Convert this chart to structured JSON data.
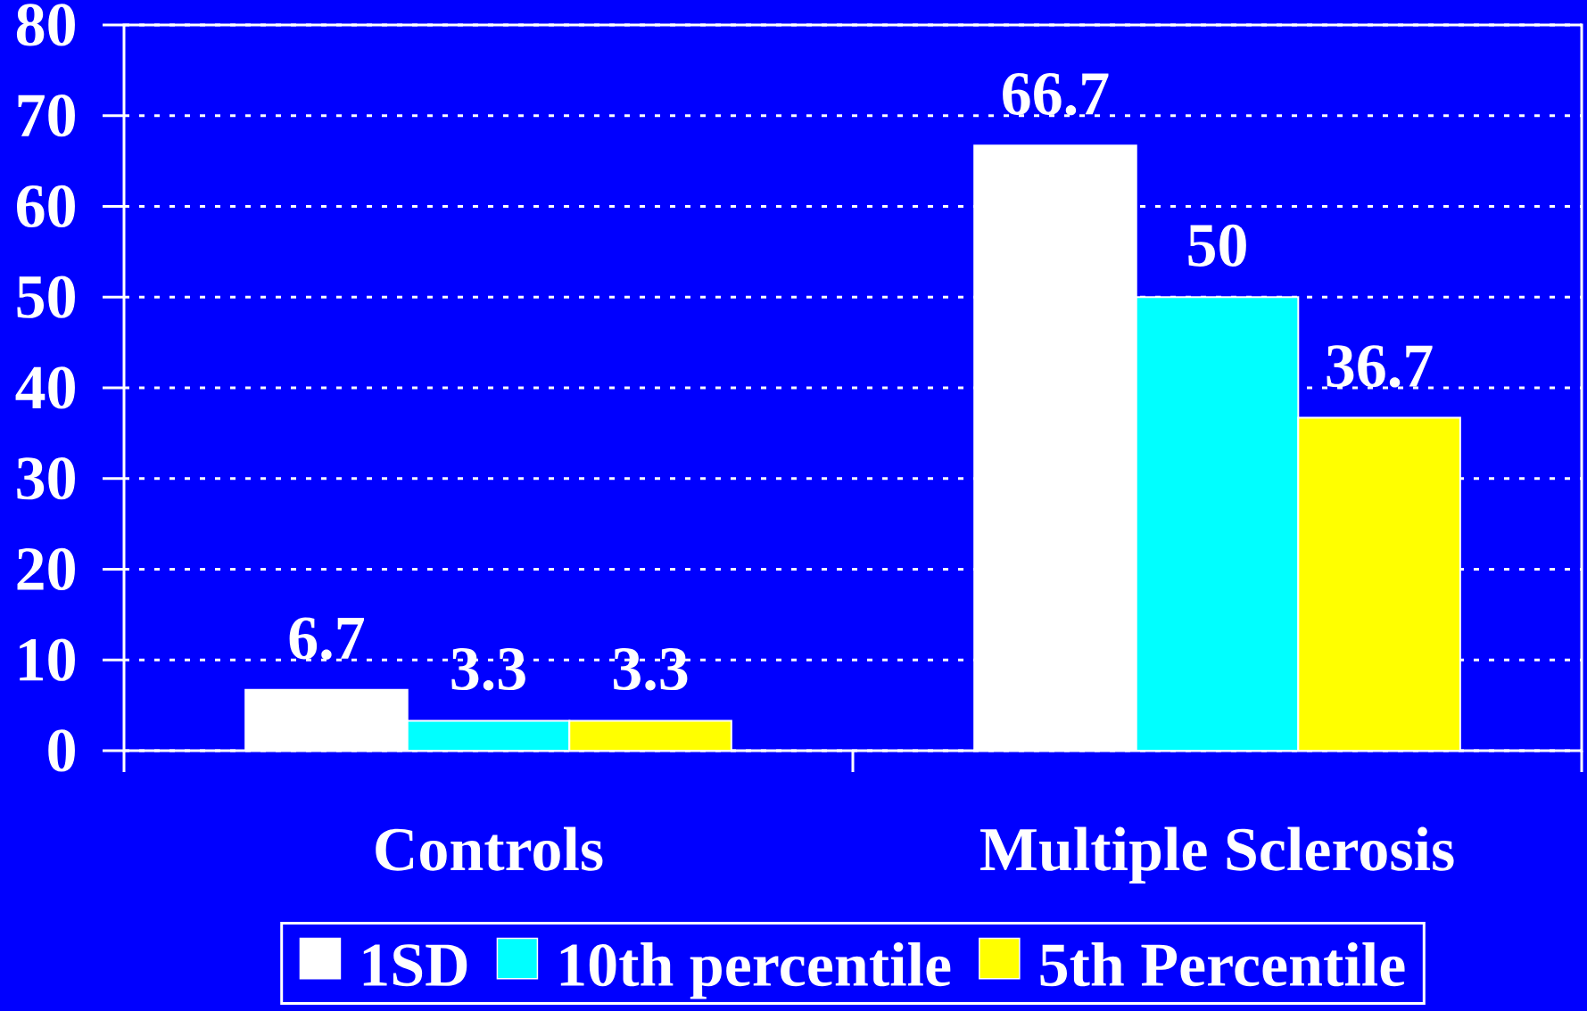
{
  "chart_data": {
    "type": "bar",
    "categories": [
      "Controls",
      "Multiple Sclerosis"
    ],
    "series": [
      {
        "name": "1SD",
        "color": "#ffffff",
        "values": [
          6.7,
          66.7
        ]
      },
      {
        "name": "10th percentile",
        "color": "#00ffff",
        "values": [
          3.3,
          50
        ]
      },
      {
        "name": "5th Percentile",
        "color": "#ffff00",
        "values": [
          3.3,
          36.7
        ]
      }
    ],
    "ylim": [
      0,
      80
    ],
    "yticks": [
      0,
      10,
      20,
      30,
      40,
      50,
      60,
      70,
      80
    ],
    "grid": "y",
    "legend": "bottom",
    "data_labels": true
  }
}
